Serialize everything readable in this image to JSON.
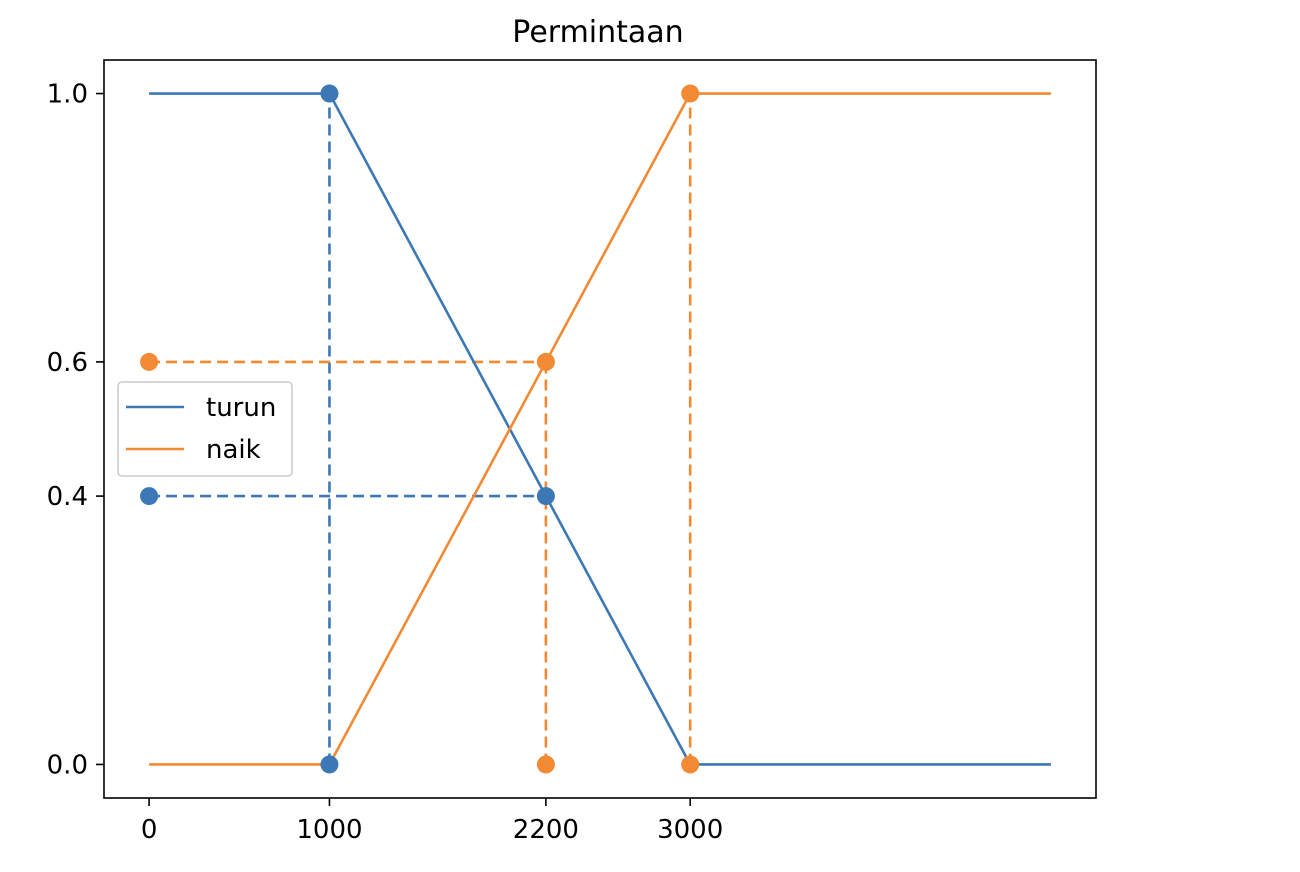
{
  "chart_data": {
    "type": "line",
    "title": "Permintaan",
    "xlabel": "",
    "ylabel": "",
    "xlim": [
      -250,
      5250
    ],
    "ylim": [
      -0.05,
      1.05
    ],
    "x_ticks": [
      0,
      1000,
      2200,
      3000
    ],
    "x_tick_labels": [
      "0",
      "1000",
      "2200",
      "3000"
    ],
    "y_ticks": [
      0.0,
      0.4,
      0.6,
      1.0
    ],
    "y_tick_labels": [
      "0.0",
      "0.4",
      "0.6",
      "1.0"
    ],
    "grid": false,
    "legend_position": "center-left",
    "series": [
      {
        "name": "turun",
        "color": "#3b78b5",
        "x": [
          0,
          1000,
          3000,
          5000
        ],
        "y": [
          1.0,
          1.0,
          0.0,
          0.0
        ]
      },
      {
        "name": "naik",
        "color": "#f28a34",
        "x": [
          0,
          1000,
          3000,
          5000
        ],
        "y": [
          0.0,
          0.0,
          1.0,
          1.0
        ]
      }
    ],
    "reference_lines": [
      {
        "series": "turun",
        "color": "#3b78b5",
        "x": [
          1000,
          1000
        ],
        "y": [
          0.0,
          1.0
        ]
      },
      {
        "series": "turun",
        "color": "#3b78b5",
        "x": [
          0,
          2200
        ],
        "y": [
          0.4,
          0.4
        ]
      },
      {
        "series": "naik",
        "color": "#f28a34",
        "x": [
          3000,
          3000
        ],
        "y": [
          0.0,
          1.0
        ]
      },
      {
        "series": "naik",
        "color": "#f28a34",
        "x": [
          0,
          2200
        ],
        "y": [
          0.6,
          0.6
        ]
      },
      {
        "series": "naik",
        "color": "#f28a34",
        "x": [
          2200,
          2200
        ],
        "y": [
          0.0,
          0.6
        ]
      }
    ],
    "markers": [
      {
        "series": "turun",
        "color": "#3b78b5",
        "x": 1000,
        "y": 1.0
      },
      {
        "series": "turun",
        "color": "#3b78b5",
        "x": 1000,
        "y": 0.0
      },
      {
        "series": "turun",
        "color": "#3b78b5",
        "x": 0,
        "y": 0.4
      },
      {
        "series": "turun",
        "color": "#3b78b5",
        "x": 2200,
        "y": 0.4
      },
      {
        "series": "naik",
        "color": "#f28a34",
        "x": 3000,
        "y": 1.0
      },
      {
        "series": "naik",
        "color": "#f28a34",
        "x": 3000,
        "y": 0.0
      },
      {
        "series": "naik",
        "color": "#f28a34",
        "x": 0,
        "y": 0.6
      },
      {
        "series": "naik",
        "color": "#f28a34",
        "x": 2200,
        "y": 0.6
      },
      {
        "series": "naik",
        "color": "#f28a34",
        "x": 2200,
        "y": 0.0
      }
    ]
  }
}
